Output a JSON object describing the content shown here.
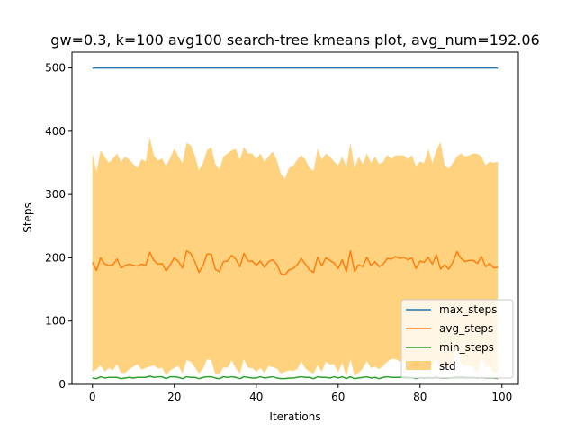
{
  "chart_data": {
    "type": "line",
    "title": "gw=0.3, k=100 avg100 search-tree kmeans plot, avg_num=192.06",
    "xlabel": "Iterations",
    "ylabel": "Steps",
    "xlim": [
      -5,
      104
    ],
    "ylim": [
      0,
      525
    ],
    "xticks": [
      0,
      20,
      40,
      60,
      80,
      100
    ],
    "yticks": [
      0,
      100,
      200,
      300,
      400,
      500
    ],
    "grid": false,
    "legend_position": "lower right",
    "x": [
      0,
      1,
      2,
      3,
      4,
      5,
      6,
      7,
      8,
      9,
      10,
      11,
      12,
      13,
      14,
      15,
      16,
      17,
      18,
      19,
      20,
      21,
      22,
      23,
      24,
      25,
      26,
      27,
      28,
      29,
      30,
      31,
      32,
      33,
      34,
      35,
      36,
      37,
      38,
      39,
      40,
      41,
      42,
      43,
      44,
      45,
      46,
      47,
      48,
      49,
      50,
      51,
      52,
      53,
      54,
      55,
      56,
      57,
      58,
      59,
      60,
      61,
      62,
      63,
      64,
      65,
      66,
      67,
      68,
      69,
      70,
      71,
      72,
      73,
      74,
      75,
      76,
      77,
      78,
      79,
      80,
      81,
      82,
      83,
      84,
      85,
      86,
      87,
      88,
      89,
      90,
      91,
      92,
      93,
      94,
      95,
      96,
      97,
      98,
      99
    ],
    "series": [
      {
        "name": "max_steps",
        "color": "#1f77b4",
        "values": [
          500,
          500,
          500,
          500,
          500,
          500,
          500,
          500,
          500,
          500,
          500,
          500,
          500,
          500,
          500,
          500,
          500,
          500,
          500,
          500,
          500,
          500,
          500,
          500,
          500,
          500,
          500,
          500,
          500,
          500,
          500,
          500,
          500,
          500,
          500,
          500,
          500,
          500,
          500,
          500,
          500,
          500,
          500,
          500,
          500,
          500,
          500,
          500,
          500,
          500,
          500,
          500,
          500,
          500,
          500,
          500,
          500,
          500,
          500,
          500,
          500,
          500,
          500,
          500,
          500,
          500,
          500,
          500,
          500,
          500,
          500,
          500,
          500,
          500,
          500,
          500,
          500,
          500,
          500,
          500,
          500,
          500,
          500,
          500,
          500,
          500,
          500,
          500,
          500,
          500,
          500,
          500,
          500,
          500,
          500,
          500,
          500,
          500,
          500,
          500
        ]
      },
      {
        "name": "avg_steps",
        "color": "#ff7f0e",
        "values": [
          193,
          180,
          200,
          190,
          188,
          189,
          198,
          184,
          188,
          190,
          188,
          187,
          190,
          188,
          209,
          196,
          190,
          191,
          179,
          189,
          200,
          194,
          184,
          211,
          207,
          194,
          177,
          188,
          206,
          206,
          182,
          178,
          194,
          195,
          204,
          198,
          186,
          207,
          195,
          195,
          188,
          195,
          185,
          194,
          197,
          190,
          175,
          173,
          181,
          183,
          189,
          199,
          190,
          181,
          177,
          201,
          187,
          200,
          196,
          192,
          183,
          197,
          178,
          211,
          178,
          189,
          186,
          201,
          188,
          194,
          186,
          190,
          199,
          198,
          202,
          199,
          201,
          197,
          200,
          183,
          195,
          193,
          201,
          190,
          205,
          182,
          189,
          182,
          193,
          210,
          199,
          194,
          196,
          196,
          191,
          202,
          186,
          191,
          184,
          185
        ]
      },
      {
        "name": "min_steps",
        "color": "#2ca02c",
        "values": [
          10,
          9,
          12,
          10,
          11,
          11,
          11,
          9,
          10,
          11,
          10,
          11,
          11,
          11,
          13,
          11,
          12,
          12,
          9,
          12,
          12,
          11,
          9,
          12,
          11,
          11,
          9,
          11,
          12,
          12,
          10,
          9,
          12,
          11,
          12,
          11,
          9,
          12,
          11,
          10,
          10,
          12,
          10,
          11,
          12,
          10,
          9,
          9,
          10,
          10,
          11,
          12,
          11,
          11,
          9,
          12,
          11,
          11,
          10,
          12,
          10,
          12,
          9,
          12,
          9,
          10,
          11,
          12,
          10,
          11,
          9,
          11,
          12,
          11,
          11,
          11,
          12,
          11,
          11,
          9,
          11,
          10,
          11,
          10,
          12,
          10,
          10,
          10,
          11,
          12,
          12,
          11,
          11,
          11,
          10,
          11,
          10,
          10,
          10,
          9
        ]
      }
    ],
    "std_band": {
      "name": "std",
      "color": "#ffa500",
      "opacity": 0.5,
      "upper": [
        365,
        336,
        370,
        360,
        350,
        357,
        365,
        352,
        360,
        355,
        348,
        342,
        356,
        352,
        390,
        362,
        354,
        357,
        345,
        358,
        373,
        360,
        350,
        382,
        378,
        362,
        338,
        350,
        370,
        375,
        348,
        340,
        360,
        365,
        370,
        372,
        355,
        375,
        365,
        365,
        356,
        365,
        352,
        360,
        368,
        355,
        333,
        325,
        342,
        345,
        355,
        362,
        355,
        342,
        337,
        373,
        355,
        365,
        360,
        352,
        346,
        360,
        344,
        382,
        342,
        360,
        348,
        365,
        350,
        360,
        348,
        352,
        363,
        356,
        362,
        362,
        362,
        356,
        362,
        345,
        352,
        350,
        372,
        350,
        370,
        383,
        346,
        341,
        350,
        360,
        365,
        360,
        362,
        365,
        364,
        360,
        346,
        352,
        350,
        352
      ],
      "lower": [
        20,
        24,
        30,
        20,
        26,
        22,
        32,
        18,
        18,
        24,
        28,
        32,
        23,
        26,
        28,
        30,
        25,
        26,
        14,
        22,
        26,
        29,
        17,
        38,
        36,
        27,
        17,
        25,
        40,
        38,
        16,
        16,
        27,
        26,
        38,
        25,
        17,
        40,
        26,
        26,
        20,
        26,
        18,
        29,
        27,
        25,
        17,
        20,
        22,
        21,
        24,
        36,
        25,
        20,
        17,
        30,
        20,
        36,
        31,
        32,
        19,
        34,
        12,
        40,
        13,
        18,
        25,
        37,
        26,
        28,
        24,
        29,
        36,
        40,
        40,
        36,
        40,
        38,
        38,
        21,
        38,
        37,
        30,
        31,
        40,
        20,
        32,
        23,
        36,
        60,
        33,
        28,
        30,
        27,
        18,
        44,
        26,
        30,
        18,
        18
      ]
    }
  }
}
